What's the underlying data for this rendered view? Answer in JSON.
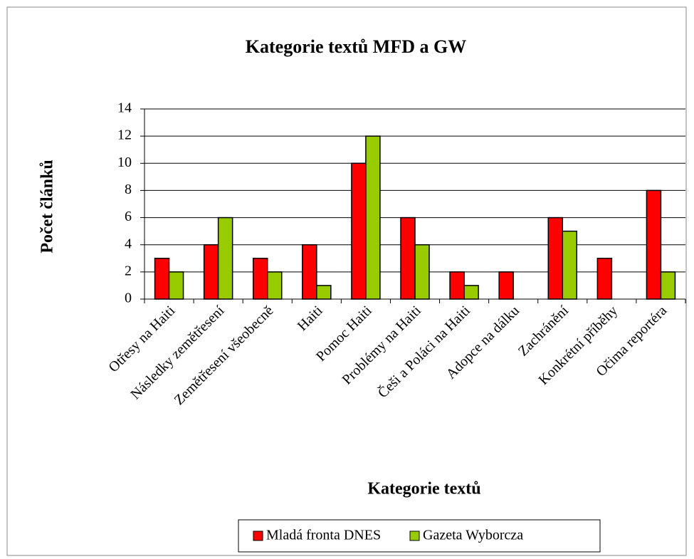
{
  "chart_data": {
    "type": "bar",
    "title": "Kategorie textů MFD a GW",
    "x_label": "Kategorie textů",
    "y_label": "Počet článků",
    "categories": [
      "Otřesy na Haiti",
      "Následky zemětřesení",
      "Zemětřesení všeobecně",
      "Haiti",
      "Pomoc Haiti",
      "Problémy na Haiti",
      "Češi a Poláci na Haiti",
      "Adopce na dálku",
      "Zachránění",
      "Konkrétní příběhy",
      "Očima reportéra"
    ],
    "series": [
      {
        "name": "Mladá fronta DNES",
        "color": "#ff0000",
        "values": [
          3,
          4,
          3,
          4,
          10,
          6,
          2,
          2,
          6,
          3,
          8
        ]
      },
      {
        "name": "Gazeta Wyborcza",
        "color": "#99cc00",
        "values": [
          2,
          6,
          2,
          1,
          12,
          4,
          1,
          0,
          5,
          0,
          2
        ]
      }
    ],
    "ylim": [
      0,
      14
    ],
    "yticks": [
      0,
      2,
      4,
      6,
      8,
      10,
      12,
      14
    ],
    "grid": true,
    "legend": "bottom"
  }
}
